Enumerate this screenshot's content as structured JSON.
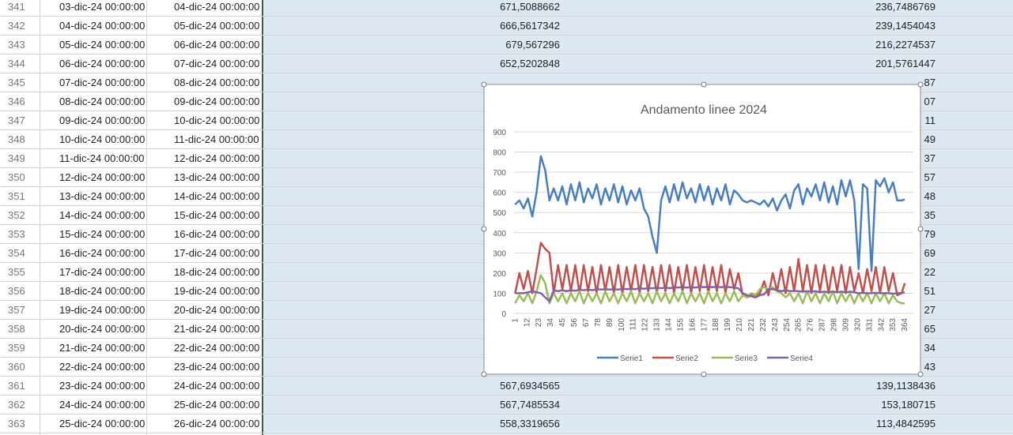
{
  "sheet": {
    "rows": [
      {
        "num": 341,
        "start": "03-dic-24 00:00:00",
        "end": "04-dic-24 00:00:00",
        "d": "671,5088662",
        "e": "236,7486769"
      },
      {
        "num": 342,
        "start": "04-dic-24 00:00:00",
        "end": "05-dic-24 00:00:00",
        "d": "666,5617342",
        "e": "239,1454043"
      },
      {
        "num": 343,
        "start": "05-dic-24 00:00:00",
        "end": "06-dic-24 00:00:00",
        "d": "679,567296",
        "e": "216,2274537"
      },
      {
        "num": 344,
        "start": "06-dic-24 00:00:00",
        "end": "07-dic-24 00:00:00",
        "d": "652,5202848",
        "e": "201,5761447"
      },
      {
        "num": 345,
        "start": "07-dic-24 00:00:00",
        "end": "08-dic-24 00:00:00",
        "e": "87"
      },
      {
        "num": 346,
        "start": "08-dic-24 00:00:00",
        "end": "09-dic-24 00:00:00",
        "e": "07"
      },
      {
        "num": 347,
        "start": "09-dic-24 00:00:00",
        "end": "10-dic-24 00:00:00",
        "e": "11"
      },
      {
        "num": 348,
        "start": "10-dic-24 00:00:00",
        "end": "11-dic-24 00:00:00",
        "e": "49"
      },
      {
        "num": 349,
        "start": "11-dic-24 00:00:00",
        "end": "12-dic-24 00:00:00",
        "e": "37"
      },
      {
        "num": 350,
        "start": "12-dic-24 00:00:00",
        "end": "13-dic-24 00:00:00",
        "e": "57"
      },
      {
        "num": 351,
        "start": "13-dic-24 00:00:00",
        "end": "14-dic-24 00:00:00",
        "e": "48"
      },
      {
        "num": 352,
        "start": "14-dic-24 00:00:00",
        "end": "15-dic-24 00:00:00",
        "e": "35"
      },
      {
        "num": 353,
        "start": "15-dic-24 00:00:00",
        "end": "16-dic-24 00:00:00",
        "e": "79"
      },
      {
        "num": 354,
        "start": "16-dic-24 00:00:00",
        "end": "17-dic-24 00:00:00",
        "e": "69"
      },
      {
        "num": 355,
        "start": "17-dic-24 00:00:00",
        "end": "18-dic-24 00:00:00",
        "e": "22"
      },
      {
        "num": 356,
        "start": "18-dic-24 00:00:00",
        "end": "19-dic-24 00:00:00",
        "e": "51"
      },
      {
        "num": 357,
        "start": "19-dic-24 00:00:00",
        "end": "20-dic-24 00:00:00",
        "e": "27"
      },
      {
        "num": 358,
        "start": "20-dic-24 00:00:00",
        "end": "21-dic-24 00:00:00",
        "e": "65"
      },
      {
        "num": 359,
        "start": "21-dic-24 00:00:00",
        "end": "22-dic-24 00:00:00",
        "e": "34"
      },
      {
        "num": 360,
        "start": "22-dic-24 00:00:00",
        "end": "23-dic-24 00:00:00",
        "e": "43"
      },
      {
        "num": 361,
        "start": "23-dic-24 00:00:00",
        "end": "24-dic-24 00:00:00",
        "d": "567,6934565",
        "e": "139,1138436"
      },
      {
        "num": 362,
        "start": "24-dic-24 00:00:00",
        "end": "25-dic-24 00:00:00",
        "d": "567,7485534",
        "e": "153,180715"
      },
      {
        "num": 363,
        "start": "25-dic-24 00:00:00",
        "end": "26-dic-24 00:00:00",
        "d": "558,3319656",
        "e": "113,4842595"
      }
    ]
  },
  "chart_data": {
    "type": "line",
    "title": "Andamento linee 2024",
    "x": [
      1,
      5,
      9,
      13,
      17,
      21,
      25,
      29,
      33,
      37,
      41,
      45,
      49,
      53,
      57,
      61,
      65,
      69,
      73,
      77,
      81,
      85,
      89,
      93,
      97,
      101,
      105,
      109,
      113,
      117,
      121,
      125,
      129,
      133,
      137,
      141,
      145,
      149,
      153,
      157,
      161,
      165,
      169,
      173,
      177,
      181,
      185,
      189,
      193,
      197,
      201,
      205,
      209,
      213,
      217,
      221,
      225,
      229,
      233,
      237,
      241,
      245,
      249,
      253,
      257,
      261,
      265,
      269,
      273,
      277,
      281,
      285,
      289,
      293,
      297,
      301,
      305,
      309,
      313,
      317,
      321,
      325,
      329,
      333,
      337,
      341,
      345,
      349,
      353,
      357,
      361,
      364
    ],
    "xlim": [
      0,
      372
    ],
    "xticks": [
      1,
      12,
      23,
      34,
      45,
      56,
      67,
      78,
      89,
      100,
      111,
      122,
      133,
      144,
      155,
      166,
      177,
      188,
      199,
      210,
      221,
      232,
      243,
      254,
      265,
      276,
      287,
      298,
      309,
      320,
      331,
      342,
      353,
      364
    ],
    "ylim": [
      0,
      900
    ],
    "yticks": [
      0,
      100,
      200,
      300,
      400,
      500,
      600,
      700,
      800,
      900
    ],
    "grid": true,
    "legend": "bottom",
    "series": [
      {
        "name": "Serie1",
        "color": "#4a7ebb",
        "values": [
          540,
          560,
          520,
          570,
          480,
          600,
          780,
          710,
          560,
          620,
          560,
          630,
          540,
          640,
          560,
          650,
          550,
          620,
          570,
          640,
          540,
          620,
          560,
          640,
          550,
          630,
          540,
          610,
          560,
          620,
          520,
          480,
          380,
          300,
          560,
          630,
          550,
          640,
          560,
          650,
          570,
          620,
          550,
          640,
          560,
          630,
          540,
          620,
          560,
          640,
          540,
          610,
          590,
          560,
          550,
          560,
          550,
          540,
          560,
          530,
          570,
          510,
          560,
          590,
          520,
          610,
          640,
          540,
          620,
          580,
          640,
          560,
          650,
          550,
          630,
          540,
          660,
          580,
          660,
          560,
          220,
          640,
          620,
          210,
          660,
          630,
          670,
          600,
          650,
          560,
          560,
          565
        ]
      },
      {
        "name": "Serie2",
        "color": "#c0504d",
        "values": [
          100,
          200,
          120,
          210,
          100,
          220,
          350,
          320,
          300,
          100,
          240,
          120,
          240,
          110,
          240,
          100,
          240,
          110,
          230,
          100,
          240,
          110,
          230,
          100,
          240,
          100,
          230,
          110,
          240,
          100,
          240,
          110,
          230,
          100,
          240,
          110,
          240,
          100,
          230,
          110,
          240,
          100,
          230,
          110,
          240,
          100,
          230,
          110,
          240,
          100,
          220,
          120,
          200,
          90,
          80,
          90,
          80,
          100,
          160,
          90,
          200,
          110,
          220,
          100,
          230,
          110,
          270,
          110,
          240,
          100,
          240,
          110,
          240,
          100,
          230,
          110,
          240,
          100,
          230,
          110,
          200,
          100,
          220,
          110,
          230,
          100,
          230,
          110,
          200,
          90,
          100,
          150
        ]
      },
      {
        "name": "Serie3",
        "color": "#9bbb59",
        "values": [
          50,
          90,
          60,
          100,
          50,
          110,
          190,
          150,
          50,
          100,
          60,
          100,
          50,
          100,
          60,
          110,
          50,
          100,
          60,
          100,
          50,
          110,
          60,
          100,
          50,
          100,
          60,
          110,
          50,
          100,
          60,
          100,
          50,
          110,
          60,
          100,
          50,
          100,
          60,
          110,
          50,
          100,
          60,
          100,
          50,
          110,
          60,
          100,
          50,
          100,
          60,
          110,
          60,
          90,
          80,
          100,
          90,
          120,
          130,
          120,
          130,
          110,
          100,
          80,
          100,
          60,
          100,
          50,
          110,
          60,
          100,
          50,
          100,
          60,
          110,
          50,
          100,
          60,
          100,
          50,
          100,
          60,
          100,
          50,
          100,
          60,
          100,
          50,
          90,
          60,
          50,
          50
        ]
      },
      {
        "name": "Serie4",
        "color": "#8064a2",
        "values": [
          100,
          100,
          100,
          105,
          110,
          105,
          100,
          80,
          60,
          115,
          110,
          115,
          110,
          115,
          112,
          118,
          115,
          118,
          115,
          120,
          118,
          120,
          118,
          120,
          118,
          122,
          120,
          122,
          120,
          125,
          122,
          125,
          125,
          128,
          125,
          128,
          125,
          130,
          128,
          130,
          128,
          130,
          128,
          132,
          130,
          132,
          130,
          132,
          130,
          132,
          130,
          128,
          125,
          100,
          90,
          85,
          80,
          90,
          95,
          120,
          120,
          115,
          110,
          115,
          110,
          112,
          110,
          108,
          110,
          108,
          110,
          105,
          108,
          105,
          108,
          105,
          108,
          105,
          108,
          105,
          100,
          102,
          100,
          100,
          102,
          100,
          100,
          100,
          98,
          100,
          100,
          105
        ]
      }
    ]
  }
}
